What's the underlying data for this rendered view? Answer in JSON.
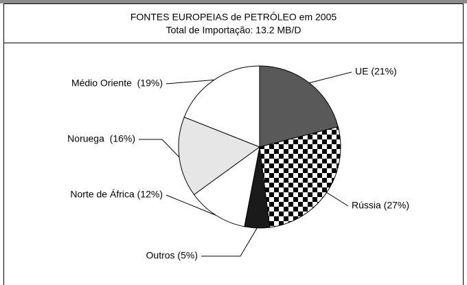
{
  "chart_data": {
    "type": "pie",
    "title": "FONTES EUROPEIAS de PETRÓLEO em 2005",
    "subtitle": "Total de Importação: 13.2 MB/D",
    "values": [
      21,
      27,
      5,
      12,
      16,
      19
    ],
    "value_labels": [
      "UE (21%)",
      "Rússia (27%)",
      "Outros (5%)",
      "Norte de África (12%)",
      "Noruega  (16%)",
      "Médio Oriente  (19%)"
    ],
    "colors": [
      "#595959",
      "checker",
      "#1a1a1a",
      "#ffffff",
      "#e6e6e6",
      "#ffffff"
    ]
  }
}
